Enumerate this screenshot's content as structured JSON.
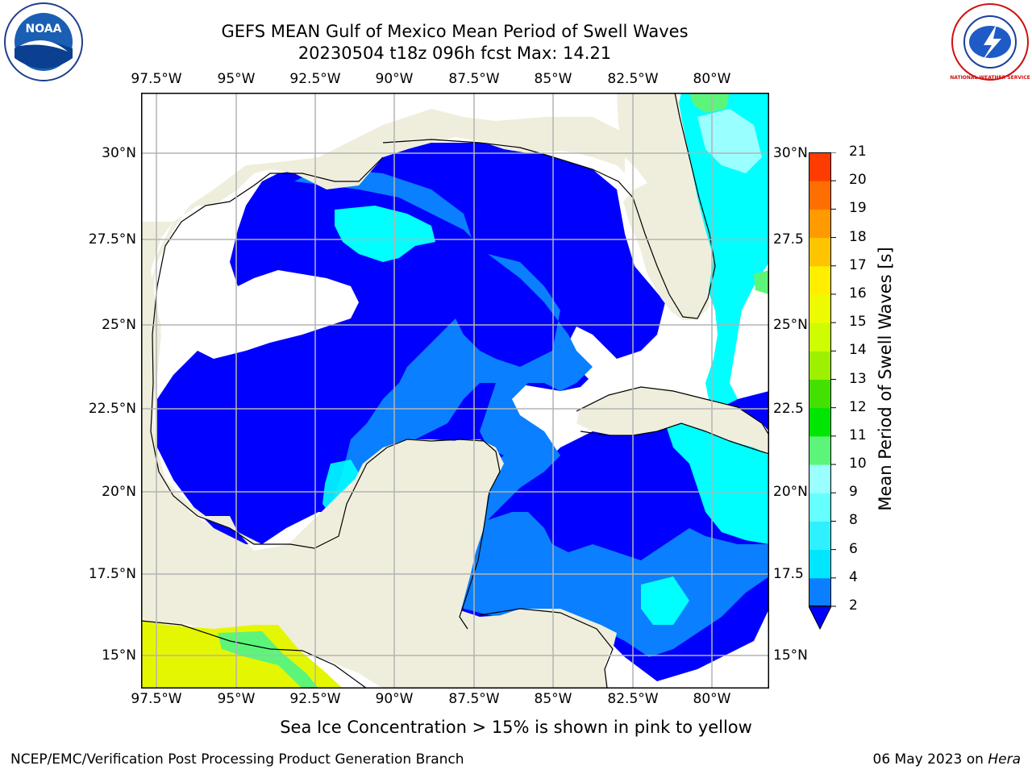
{
  "title_line1": "GEFS MEAN Gulf of Mexico Mean Period of Swell Waves",
  "title_line2": "20230504 t18z 096h fcst   Max: 14.21",
  "lon_labels": [
    "97.5°W",
    "95°W",
    "92.5°W",
    "90°W",
    "87.5°W",
    "85°W",
    "82.5°W",
    "80°W"
  ],
  "lat_labels": [
    "30°N",
    "27.5°N",
    "25°N",
    "22.5°N",
    "20°N",
    "17.5°N",
    "15°N"
  ],
  "lat_labels_right": [
    "30°N",
    "27.5",
    "25°N",
    "22.5",
    "20°N",
    "17.5",
    "15°N"
  ],
  "colorbar": {
    "title": "Mean Period of Swell Waves [s]",
    "ticks": [
      "2",
      "4",
      "6",
      "8",
      "9",
      "10",
      "11",
      "12",
      "13",
      "14",
      "15",
      "16",
      "17",
      "18",
      "19",
      "20",
      "21"
    ],
    "colors": [
      "#0a7fff",
      "#00e6ff",
      "#2ef0ff",
      "#66ffff",
      "#99ffff",
      "#5cf57a",
      "#00e600",
      "#44e000",
      "#9ef000",
      "#cdfd00",
      "#eefb00",
      "#ffee00",
      "#ffc400",
      "#ff9a00",
      "#ff6e00",
      "#ff3c00",
      "#ff0000"
    ],
    "under_color": "#0000ff"
  },
  "note": "Sea Ice Concentration > 15% is shown in pink to yellow",
  "footer_left": "NCEP/EMC/Verification Post Processing Product Generation Branch",
  "footer_date": "06 May 2023 on ",
  "footer_machine": "Hera",
  "logos": {
    "left": "noaa-logo",
    "left_text": "NOAA",
    "right": "nws-logo",
    "right_text": "NATIONAL WEATHER SERVICE"
  },
  "colors": {
    "land": "#efeedc",
    "deep_blue": "#0000ff",
    "mid_blue": "#0a7fff",
    "cyan": "#00ffff",
    "grid": "#b4b4b4"
  }
}
